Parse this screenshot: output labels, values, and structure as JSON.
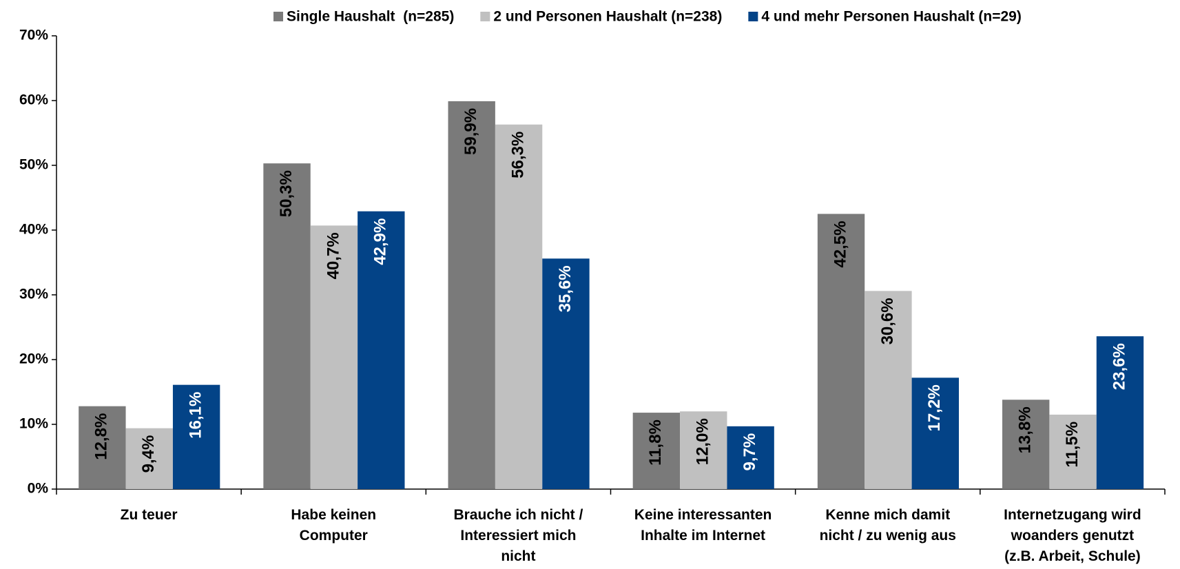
{
  "chart_data": {
    "type": "bar",
    "categories": [
      [
        "Zu teuer"
      ],
      [
        "Habe keinen",
        "Computer"
      ],
      [
        "Brauche ich nicht /",
        "Interessiert mich",
        "nicht"
      ],
      [
        "Keine interessanten",
        "Inhalte im Internet"
      ],
      [
        "Kenne mich damit",
        "nicht / zu wenig aus"
      ],
      [
        "Internetzugang wird",
        "woanders genutzt",
        "(z.B. Arbeit, Schule)"
      ]
    ],
    "series": [
      {
        "name": "Single Haushalt  (n=285)",
        "color": "#7a7a7a",
        "label_color": "#000000",
        "values": [
          12.8,
          50.3,
          59.9,
          11.8,
          42.5,
          13.8
        ],
        "value_labels": [
          "12,8%",
          "50,3%",
          "59,9%",
          "11,8%",
          "42,5%",
          "13,8%"
        ]
      },
      {
        "name": "2 und Personen Haushalt (n=238)",
        "color": "#c0c0c0",
        "label_color": "#000000",
        "values": [
          9.4,
          40.7,
          56.3,
          12.0,
          30.6,
          11.5
        ],
        "value_labels": [
          "9,4%",
          "40,7%",
          "56,3%",
          "12,0%",
          "30,6%",
          "11,5%"
        ]
      },
      {
        "name": "4 und mehr Personen Haushalt (n=29)",
        "color": "#034387",
        "label_color": "#ffffff",
        "values": [
          16.1,
          42.9,
          35.6,
          9.7,
          17.2,
          23.6
        ],
        "value_labels": [
          "16,1%",
          "42,9%",
          "35,6%",
          "9,7%",
          "17,2%",
          "23,6%"
        ]
      }
    ],
    "ylim": [
      0,
      70
    ],
    "yticks": [
      {
        "value": 0,
        "label": "0%"
      },
      {
        "value": 10,
        "label": "10%"
      },
      {
        "value": 20,
        "label": "20%"
      },
      {
        "value": 30,
        "label": "30%"
      },
      {
        "value": 40,
        "label": "40%"
      },
      {
        "value": 50,
        "label": "50%"
      },
      {
        "value": 60,
        "label": "60%"
      },
      {
        "value": 70,
        "label": "70%"
      }
    ],
    "grid": false,
    "legend": "top"
  }
}
